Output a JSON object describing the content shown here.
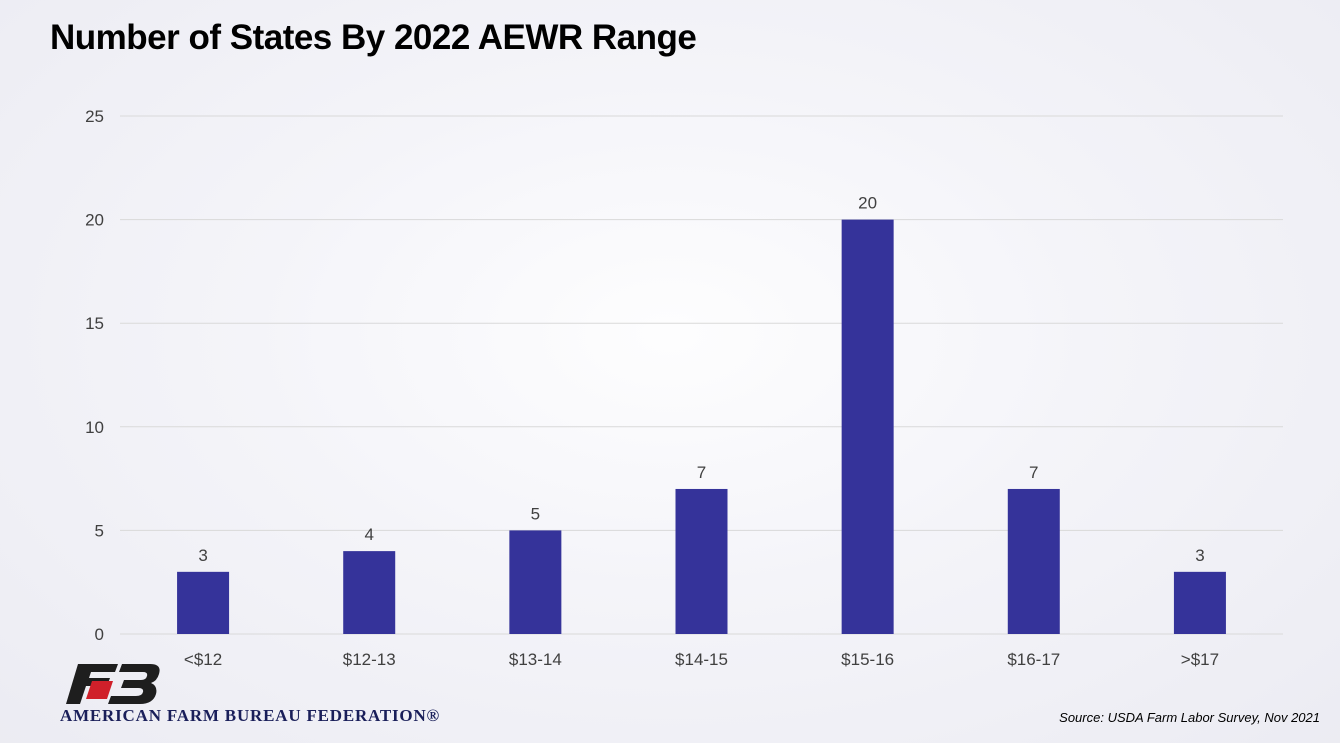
{
  "title": "Number of States By 2022 AEWR Range",
  "source": "Source: USDA Farm Labor Survey, Nov 2021",
  "logo": {
    "text": "AMERICAN FARM BUREAU FEDERATION®",
    "icon": "farm-bureau-fb-logo"
  },
  "colors": {
    "bar": "#35339a",
    "grid": "#d9d9d9",
    "logo_red": "#d0202a",
    "logo_dark": "#1e1e1e"
  },
  "chart_data": {
    "type": "bar",
    "title": "Number of States By 2022 AEWR Range",
    "categories": [
      "<$12",
      "$12-13",
      "$13-14",
      "$14-15",
      "$15-16",
      "$16-17",
      ">$17"
    ],
    "values": [
      3,
      4,
      5,
      7,
      20,
      7,
      3
    ],
    "data_labels": [
      "3",
      "4",
      "5",
      "7",
      "20",
      "7",
      "3"
    ],
    "ylim": [
      0,
      25
    ],
    "yticks": [
      0,
      5,
      10,
      15,
      20,
      25
    ],
    "ytick_labels": [
      "0",
      "5",
      "10",
      "15",
      "20",
      "25"
    ],
    "xlabel": "",
    "ylabel": "",
    "grid": true,
    "legend": "none"
  }
}
